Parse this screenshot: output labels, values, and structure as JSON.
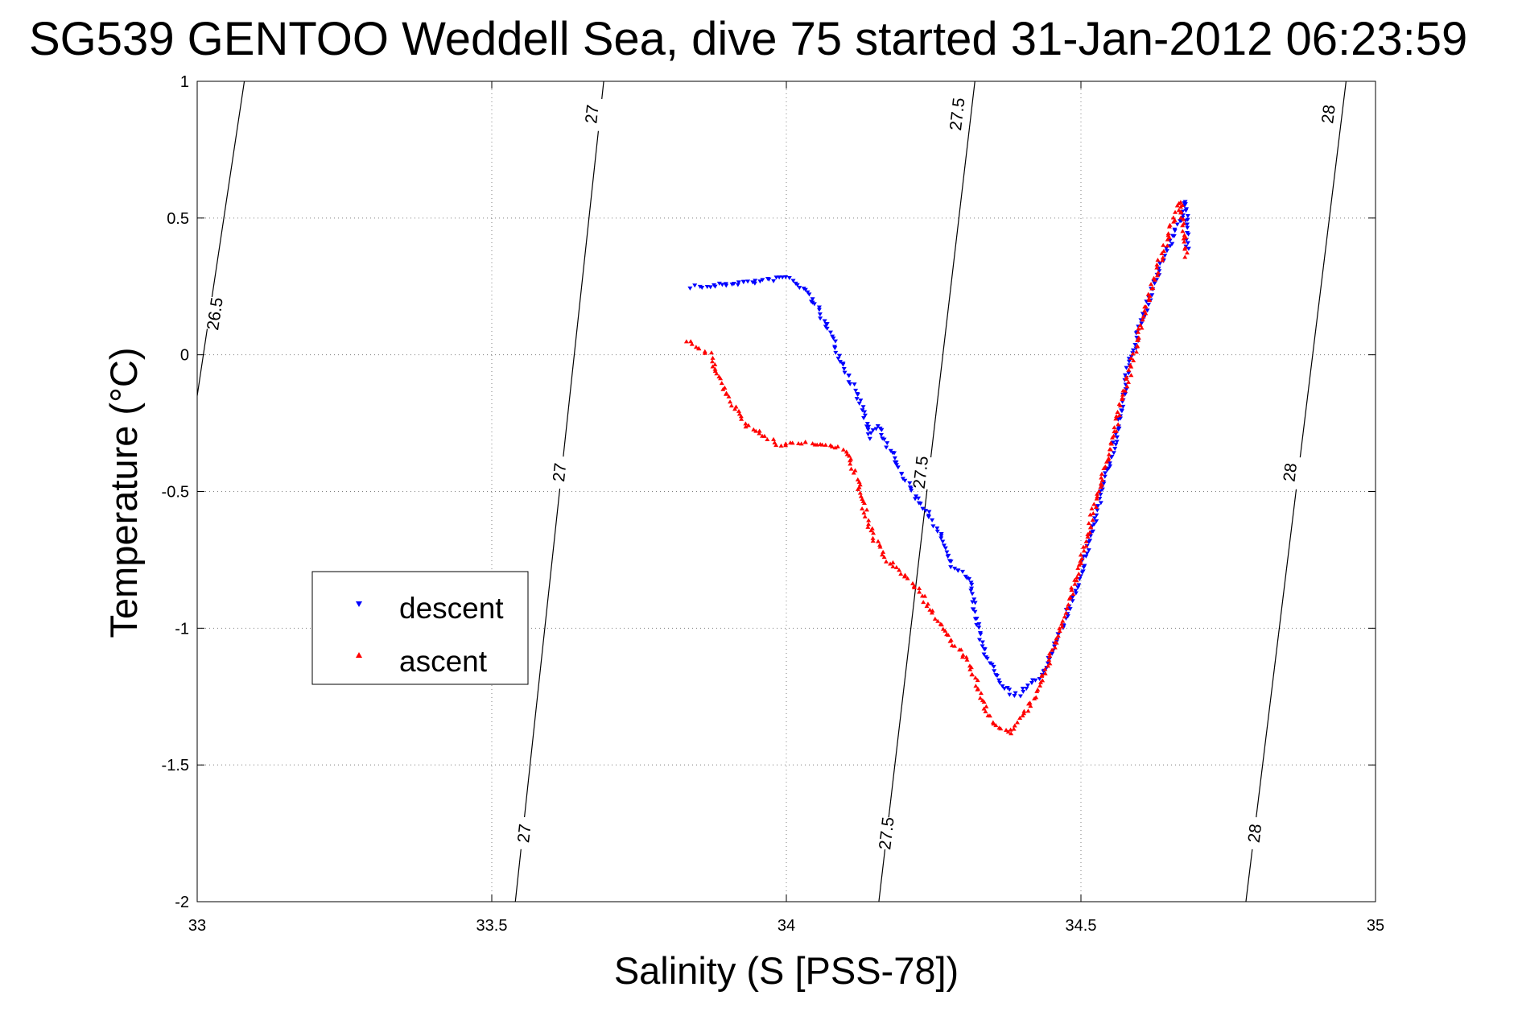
{
  "chart_data": {
    "type": "scatter",
    "title": "SG539 GENTOO Weddell Sea, dive 75 started 31-Jan-2012 06:23:59",
    "xlabel": "Salinity (S [PSS-78])",
    "ylabel": "Temperature (°C)",
    "xlim": [
      33,
      35
    ],
    "ylim": [
      -2,
      1
    ],
    "x_ticks": [
      "33",
      "33.5",
      "34",
      "34.5",
      "35"
    ],
    "y_ticks": [
      "1",
      "0.5",
      "0",
      "-0.5",
      "-1",
      "-1.5",
      "-2"
    ],
    "grid": true,
    "legend_position": "center-left",
    "density_contours": [
      {
        "label": "26.5",
        "points": [
          [
            33.0,
            -0.15
          ],
          [
            33.08,
            1.0
          ]
        ],
        "label_positions": [
          [
            33.03,
            0.15
          ]
        ]
      },
      {
        "label": "27",
        "points": [
          [
            33.54,
            -2.0
          ],
          [
            33.69,
            1.0
          ]
        ],
        "label_positions": [
          [
            33.555,
            -1.75
          ],
          [
            33.615,
            -0.43
          ],
          [
            33.67,
            0.88
          ]
        ]
      },
      {
        "label": "27.5",
        "points": [
          [
            34.157,
            -2.0
          ],
          [
            34.32,
            1.0
          ]
        ],
        "label_positions": [
          [
            34.17,
            -1.75
          ],
          [
            34.228,
            -0.43
          ],
          [
            34.29,
            0.88
          ]
        ]
      },
      {
        "label": "28",
        "points": [
          [
            34.78,
            -2.0
          ],
          [
            34.95,
            1.0
          ]
        ],
        "label_positions": [
          [
            34.795,
            -1.75
          ],
          [
            34.855,
            -0.43
          ],
          [
            34.92,
            0.88
          ]
        ]
      }
    ],
    "series": [
      {
        "name": "descent",
        "color": "#0000ff",
        "marker": "triangle-down",
        "path": [
          [
            33.84,
            0.25
          ],
          [
            33.87,
            0.25
          ],
          [
            33.9,
            0.26
          ],
          [
            33.93,
            0.265
          ],
          [
            33.96,
            0.27
          ],
          [
            34.0,
            0.285
          ],
          [
            34.04,
            0.22
          ],
          [
            34.07,
            0.1
          ],
          [
            34.1,
            -0.05
          ],
          [
            34.13,
            -0.2
          ],
          [
            34.14,
            -0.3
          ],
          [
            34.155,
            -0.26
          ],
          [
            34.2,
            -0.45
          ],
          [
            34.23,
            -0.55
          ],
          [
            34.26,
            -0.65
          ],
          [
            34.28,
            -0.77
          ],
          [
            34.31,
            -0.82
          ],
          [
            34.33,
            -1.05
          ],
          [
            34.36,
            -1.2
          ],
          [
            34.39,
            -1.25
          ],
          [
            34.43,
            -1.18
          ],
          [
            34.46,
            -1.05
          ],
          [
            34.5,
            -0.8
          ],
          [
            34.53,
            -0.55
          ],
          [
            34.56,
            -0.3
          ],
          [
            34.58,
            -0.05
          ],
          [
            34.6,
            0.1
          ],
          [
            34.63,
            0.3
          ],
          [
            34.66,
            0.45
          ],
          [
            34.68,
            0.56
          ],
          [
            34.68,
            0.38
          ]
        ]
      },
      {
        "name": "ascent",
        "color": "#ff0000",
        "marker": "triangle-up",
        "path": [
          [
            33.83,
            0.05
          ],
          [
            33.87,
            0.0
          ],
          [
            33.88,
            -0.05
          ],
          [
            33.9,
            -0.15
          ],
          [
            33.93,
            -0.25
          ],
          [
            33.96,
            -0.3
          ],
          [
            33.99,
            -0.33
          ],
          [
            34.03,
            -0.32
          ],
          [
            34.07,
            -0.33
          ],
          [
            34.1,
            -0.35
          ],
          [
            34.12,
            -0.45
          ],
          [
            34.13,
            -0.55
          ],
          [
            34.15,
            -0.68
          ],
          [
            34.17,
            -0.75
          ],
          [
            34.22,
            -0.85
          ],
          [
            34.25,
            -0.95
          ],
          [
            34.28,
            -1.05
          ],
          [
            34.31,
            -1.12
          ],
          [
            34.33,
            -1.25
          ],
          [
            34.35,
            -1.35
          ],
          [
            34.38,
            -1.38
          ],
          [
            34.41,
            -1.3
          ],
          [
            34.44,
            -1.15
          ],
          [
            34.47,
            -0.98
          ],
          [
            34.5,
            -0.75
          ],
          [
            34.53,
            -0.5
          ],
          [
            34.56,
            -0.25
          ],
          [
            34.59,
            0.0
          ],
          [
            34.62,
            0.25
          ],
          [
            34.65,
            0.45
          ],
          [
            34.67,
            0.56
          ],
          [
            34.68,
            0.35
          ]
        ]
      }
    ]
  }
}
